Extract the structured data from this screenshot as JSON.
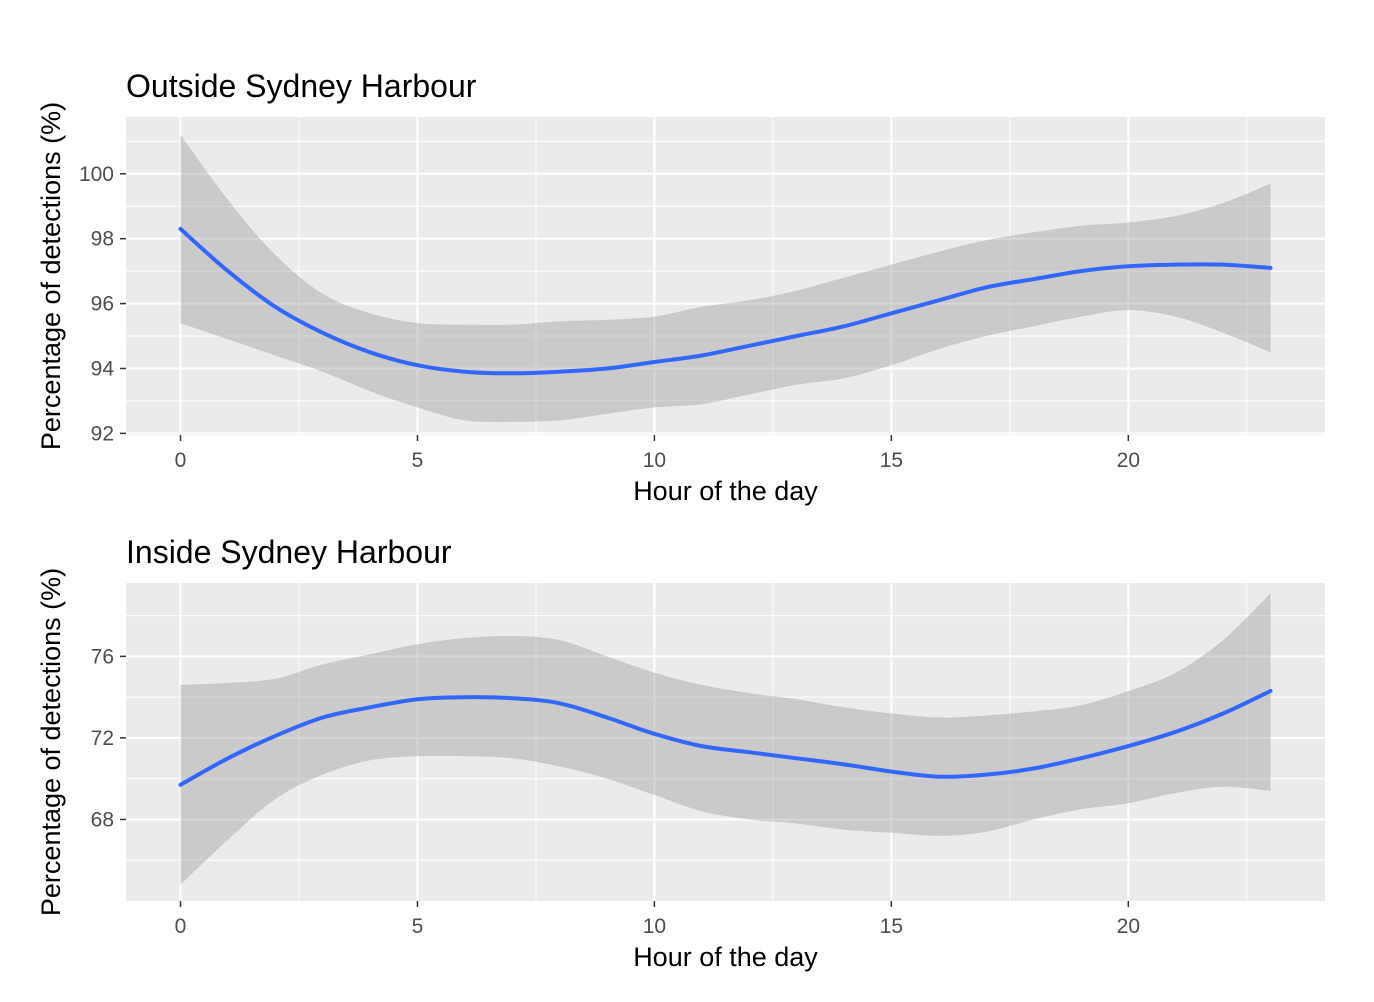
{
  "chart_data": [
    {
      "type": "line",
      "title": "Outside Sydney Harbour",
      "xlabel": "Hour of the day",
      "ylabel": "Percentage of detections (%)",
      "xlim": [
        -1.15,
        24.15
      ],
      "ylim": [
        91.95,
        101.75
      ],
      "xticks": [
        0,
        5,
        10,
        15,
        20
      ],
      "yticks": [
        92,
        94,
        96,
        98,
        100
      ],
      "grid": true,
      "legend": "none",
      "colors": {
        "line": "#3366ff",
        "band": "#999999",
        "panel": "#ebebeb",
        "grid": "#ffffff"
      },
      "series": [
        {
          "x": [
            0,
            1,
            2,
            3,
            4,
            5,
            6,
            7,
            8,
            9,
            10,
            11,
            12,
            13,
            14,
            15,
            16,
            17,
            18,
            19,
            20,
            21,
            22,
            23
          ],
          "y": [
            98.3,
            97.0,
            95.9,
            95.1,
            94.5,
            94.1,
            93.9,
            93.85,
            93.9,
            94.0,
            94.2,
            94.4,
            94.7,
            95.0,
            95.3,
            95.7,
            96.1,
            96.5,
            96.75,
            97.0,
            97.15,
            97.2,
            97.2,
            97.1
          ],
          "ymin": [
            95.4,
            94.9,
            94.4,
            93.9,
            93.3,
            92.8,
            92.4,
            92.35,
            92.4,
            92.6,
            92.8,
            92.9,
            93.2,
            93.5,
            93.7,
            94.1,
            94.6,
            95.0,
            95.3,
            95.6,
            95.8,
            95.6,
            95.1,
            94.5
          ],
          "ymax": [
            101.2,
            99.2,
            97.5,
            96.3,
            95.7,
            95.4,
            95.35,
            95.35,
            95.45,
            95.5,
            95.6,
            95.9,
            96.1,
            96.4,
            96.8,
            97.2,
            97.6,
            97.95,
            98.2,
            98.4,
            98.5,
            98.7,
            99.1,
            99.7
          ]
        }
      ]
    },
    {
      "type": "line",
      "title": "Inside Sydney Harbour",
      "xlabel": "Hour of the day",
      "ylabel": "Percentage of detections (%)",
      "xlim": [
        -1.15,
        24.15
      ],
      "ylim": [
        64.0,
        79.6
      ],
      "xticks": [
        0,
        5,
        10,
        15,
        20
      ],
      "yticks": [
        68,
        72,
        76
      ],
      "grid": true,
      "legend": "none",
      "colors": {
        "line": "#3366ff",
        "band": "#999999",
        "panel": "#ebebeb",
        "grid": "#ffffff"
      },
      "series": [
        {
          "x": [
            0,
            1,
            2,
            3,
            4,
            5,
            6,
            7,
            8,
            9,
            10,
            11,
            12,
            13,
            14,
            15,
            16,
            17,
            18,
            19,
            20,
            21,
            22,
            23
          ],
          "y": [
            69.7,
            71.0,
            72.1,
            73.0,
            73.5,
            73.9,
            74.0,
            73.95,
            73.7,
            73.0,
            72.2,
            71.6,
            71.3,
            71.0,
            70.7,
            70.35,
            70.1,
            70.2,
            70.5,
            71.0,
            71.6,
            72.3,
            73.2,
            74.3
          ],
          "ymin": [
            64.8,
            67.0,
            69.0,
            70.2,
            70.9,
            71.1,
            71.1,
            71.0,
            70.6,
            70.0,
            69.2,
            68.4,
            68.0,
            67.8,
            67.5,
            67.35,
            67.2,
            67.4,
            68.0,
            68.5,
            68.8,
            69.3,
            69.6,
            69.4
          ],
          "ymax": [
            74.6,
            74.7,
            74.9,
            75.6,
            76.1,
            76.6,
            76.9,
            77.0,
            76.8,
            76.0,
            75.2,
            74.6,
            74.2,
            73.9,
            73.5,
            73.2,
            73.0,
            73.1,
            73.3,
            73.6,
            74.3,
            75.2,
            76.8,
            79.1
          ]
        }
      ]
    }
  ]
}
